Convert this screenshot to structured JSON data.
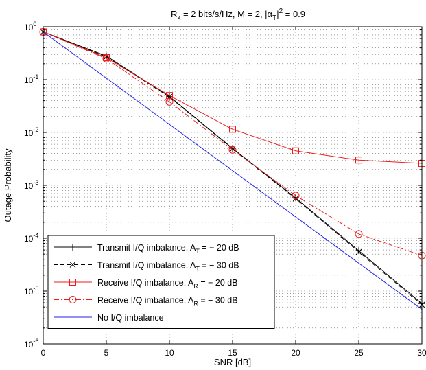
{
  "chart_data": {
    "type": "line",
    "title": {
      "main": "R",
      "sub_k": "k",
      "mid": " = 2 bits/s/Hz, M = 2, |α",
      "sub_t": "T",
      "close": "|",
      "sup": "2",
      "end": " = 0.9"
    },
    "xlabel": "SNR [dB]",
    "ylabel": "Outage Probability",
    "xlim": [
      0,
      30
    ],
    "ylim": [
      1e-06,
      1
    ],
    "yscale": "log",
    "grid": true,
    "x_ticks": [
      0,
      5,
      10,
      15,
      20,
      25,
      30
    ],
    "x_tick_labels": [
      "0",
      "5",
      "10",
      "15",
      "20",
      "25",
      "30"
    ],
    "y_tick_labels": [
      {
        "base": "10",
        "exp": "-6"
      },
      {
        "base": "10",
        "exp": "-5"
      },
      {
        "base": "10",
        "exp": "-4"
      },
      {
        "base": "10",
        "exp": "-3"
      },
      {
        "base": "10",
        "exp": "-2"
      },
      {
        "base": "10",
        "exp": "-1"
      },
      {
        "base": "10",
        "exp": "0"
      }
    ],
    "legend_position": "bottom-left",
    "x": [
      0,
      5,
      10,
      15,
      20,
      25,
      30
    ],
    "series": [
      {
        "legend": {
          "pre": "Transmit I/Q imbalance, A",
          "sub": "T",
          "post": " = − 20 dB"
        },
        "color": "#000000",
        "dash": "solid",
        "marker": "plus",
        "x": [
          0,
          5,
          10,
          15,
          20,
          25,
          30
        ],
        "values": [
          0.8,
          0.28,
          0.048,
          0.005,
          0.00058,
          5.8e-05,
          5.8e-06
        ]
      },
      {
        "legend": {
          "pre": "Transmit I/Q imbalance, A",
          "sub": "T",
          "post": " = − 30 dB"
        },
        "color": "#000000",
        "dash": "dashed",
        "marker": "x",
        "x": [
          0,
          5,
          10,
          15,
          20,
          25,
          30
        ],
        "values": [
          0.8,
          0.27,
          0.047,
          0.0049,
          0.00056,
          5.5e-05,
          5.5e-06
        ]
      },
      {
        "legend": {
          "pre": "Receive I/Q imbalance, A",
          "sub": "R",
          "post": " = − 20 dB"
        },
        "color": "#ee1c1c",
        "dash": "solid",
        "marker": "square",
        "x": [
          0,
          5,
          10,
          15,
          20,
          25,
          30
        ],
        "values": [
          0.8,
          0.26,
          0.05,
          0.0115,
          0.0045,
          0.003,
          0.0026
        ]
      },
      {
        "legend": {
          "pre": "Receive I/Q imbalance, A",
          "sub": "R",
          "post": " = − 30 dB"
        },
        "color": "#ee1c1c",
        "dash": "dashdot",
        "marker": "circle",
        "x": [
          0,
          5,
          10,
          15,
          20,
          25,
          30
        ],
        "values": [
          0.8,
          0.25,
          0.038,
          0.0047,
          0.00064,
          0.00012,
          4.7e-05
        ]
      },
      {
        "legend": {
          "pre": "No I/Q imbalance",
          "sub": "",
          "post": ""
        },
        "color": "#2222ee",
        "dash": "solid",
        "marker": "none",
        "x": [
          0,
          30
        ],
        "values": [
          0.8,
          4.5e-06
        ]
      }
    ]
  }
}
